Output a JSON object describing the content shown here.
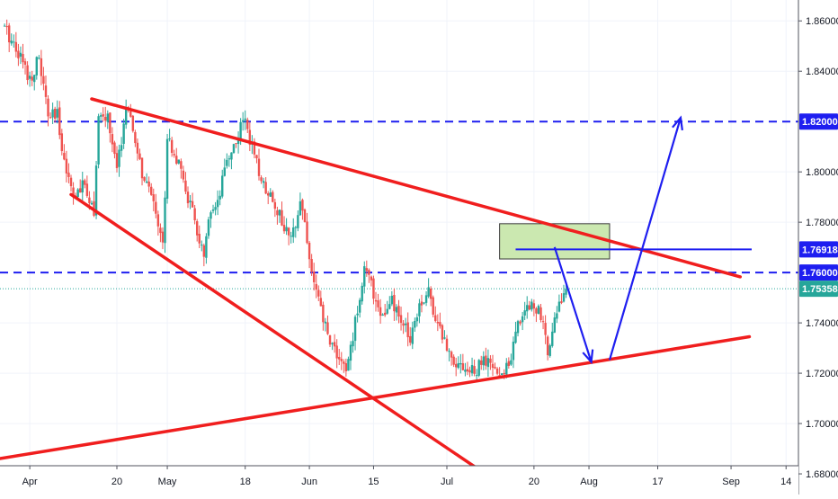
{
  "chart_data": {
    "type": "candlestick",
    "title": "",
    "xlabel": "",
    "ylabel": "",
    "ylim": [
      1.6718,
      1.8683
    ],
    "x_range_days": [
      -6.5,
      157.5
    ],
    "y_ticks": [
      {
        "value": 1.68,
        "label": "1.68000"
      },
      {
        "value": 1.7,
        "label": "1.70000"
      },
      {
        "value": 1.72,
        "label": "1.72000"
      },
      {
        "value": 1.74,
        "label": "1.74000"
      },
      {
        "value": 1.78,
        "label": "1.78000"
      },
      {
        "value": 1.8,
        "label": "1.80000"
      },
      {
        "value": 1.84,
        "label": "1.84000"
      },
      {
        "value": 1.86,
        "label": "1.86000"
      }
    ],
    "x_ticks": [
      {
        "day": 0,
        "label": "Apr"
      },
      {
        "day": 19,
        "label": "20"
      },
      {
        "day": 30,
        "label": "May"
      },
      {
        "day": 47,
        "label": "18"
      },
      {
        "day": 61,
        "label": "Jun"
      },
      {
        "day": 75,
        "label": "15"
      },
      {
        "day": 91,
        "label": "Jul"
      },
      {
        "day": 110,
        "label": "20"
      },
      {
        "day": 122,
        "label": "Aug"
      },
      {
        "day": 137,
        "label": "17"
      },
      {
        "day": 153,
        "label": "Sep"
      },
      {
        "day": 165,
        "label": "14"
      }
    ],
    "price_labels": [
      {
        "value": 1.82,
        "label": "1.82000",
        "color": "#1e1ef0"
      },
      {
        "value": 1.76918,
        "label": "1.76918",
        "color": "#1e1ef0"
      },
      {
        "value": 1.76,
        "label": "1.76000",
        "color": "#1e1ef0"
      },
      {
        "value": 1.75358,
        "label": "1.75358",
        "color": "#26a69a"
      }
    ],
    "last_price": 1.75358,
    "candle_colors": {
      "up": "#26a69a",
      "down": "#ef5350"
    },
    "close_path": [
      [
        -6,
        1.858
      ],
      [
        -3,
        1.85
      ],
      [
        0,
        1.837
      ],
      [
        2,
        1.845
      ],
      [
        4,
        1.822
      ],
      [
        6,
        1.822
      ],
      [
        8,
        1.8
      ],
      [
        10,
        1.79
      ],
      [
        12,
        1.795
      ],
      [
        14,
        1.785
      ],
      [
        15,
        1.82
      ],
      [
        17,
        1.822
      ],
      [
        19,
        1.8
      ],
      [
        21,
        1.826
      ],
      [
        23,
        1.812
      ],
      [
        25,
        1.795
      ],
      [
        27,
        1.79
      ],
      [
        29,
        1.77
      ],
      [
        30,
        1.815
      ],
      [
        32,
        1.805
      ],
      [
        34,
        1.793
      ],
      [
        36,
        1.78
      ],
      [
        38,
        1.765
      ],
      [
        39,
        1.78
      ],
      [
        41,
        1.786
      ],
      [
        43,
        1.805
      ],
      [
        45,
        1.812
      ],
      [
        47,
        1.822
      ],
      [
        49,
        1.805
      ],
      [
        51,
        1.795
      ],
      [
        53,
        1.79
      ],
      [
        55,
        1.78
      ],
      [
        57,
        1.772
      ],
      [
        59,
        1.79
      ],
      [
        60,
        1.78
      ],
      [
        61,
        1.765
      ],
      [
        63,
        1.748
      ],
      [
        65,
        1.735
      ],
      [
        67,
        1.728
      ],
      [
        69,
        1.72
      ],
      [
        71,
        1.74
      ],
      [
        73,
        1.762
      ],
      [
        75,
        1.752
      ],
      [
        77,
        1.742
      ],
      [
        79,
        1.748
      ],
      [
        81,
        1.74
      ],
      [
        83,
        1.735
      ],
      [
        85,
        1.748
      ],
      [
        87,
        1.752
      ],
      [
        89,
        1.74
      ],
      [
        91,
        1.73
      ],
      [
        93,
        1.725
      ],
      [
        95,
        1.722
      ],
      [
        97,
        1.72
      ],
      [
        99,
        1.725
      ],
      [
        101,
        1.722
      ],
      [
        103,
        1.718
      ],
      [
        105,
        1.728
      ],
      [
        107,
        1.742
      ],
      [
        109,
        1.748
      ],
      [
        111,
        1.745
      ],
      [
        113,
        1.73
      ],
      [
        115,
        1.745
      ],
      [
        117,
        1.755
      ]
    ],
    "overlays": {
      "horizontal_levels": [
        {
          "value": 1.82,
          "style": "dashed",
          "color": "#1e1ef0"
        },
        {
          "value": 1.76,
          "style": "dashed",
          "color": "#1e1ef0"
        },
        {
          "value": 1.75358,
          "style": "dotted",
          "color": "#26a69a"
        }
      ],
      "trendlines": [
        {
          "color": "#f01e1e",
          "from": [
            13.5,
            1.829
          ],
          "to": [
            155,
            1.7583
          ]
        },
        {
          "color": "#f01e1e",
          "from": [
            9,
            1.791
          ],
          "to": [
            105,
            1.6731
          ]
        },
        {
          "color": "#f01e1e",
          "from": [
            -6.5,
            1.6861
          ],
          "to": [
            157,
            1.7345
          ]
        }
      ],
      "target_zone": {
        "x": [
          102.5,
          126.5
        ],
        "y": [
          1.7654,
          1.7794
        ],
        "color": "#cbe8b0"
      },
      "level_segment": {
        "x": [
          106,
          157.5
        ],
        "value": 1.76918,
        "color": "#1e1ef0"
      },
      "projection_path": {
        "points": [
          [
            114.5,
            1.7701
          ],
          [
            122.5,
            1.7245
          ],
          [
            126.5,
            1.7253
          ],
          [
            142,
            1.8215
          ]
        ],
        "color": "#1e1ef0"
      }
    }
  }
}
